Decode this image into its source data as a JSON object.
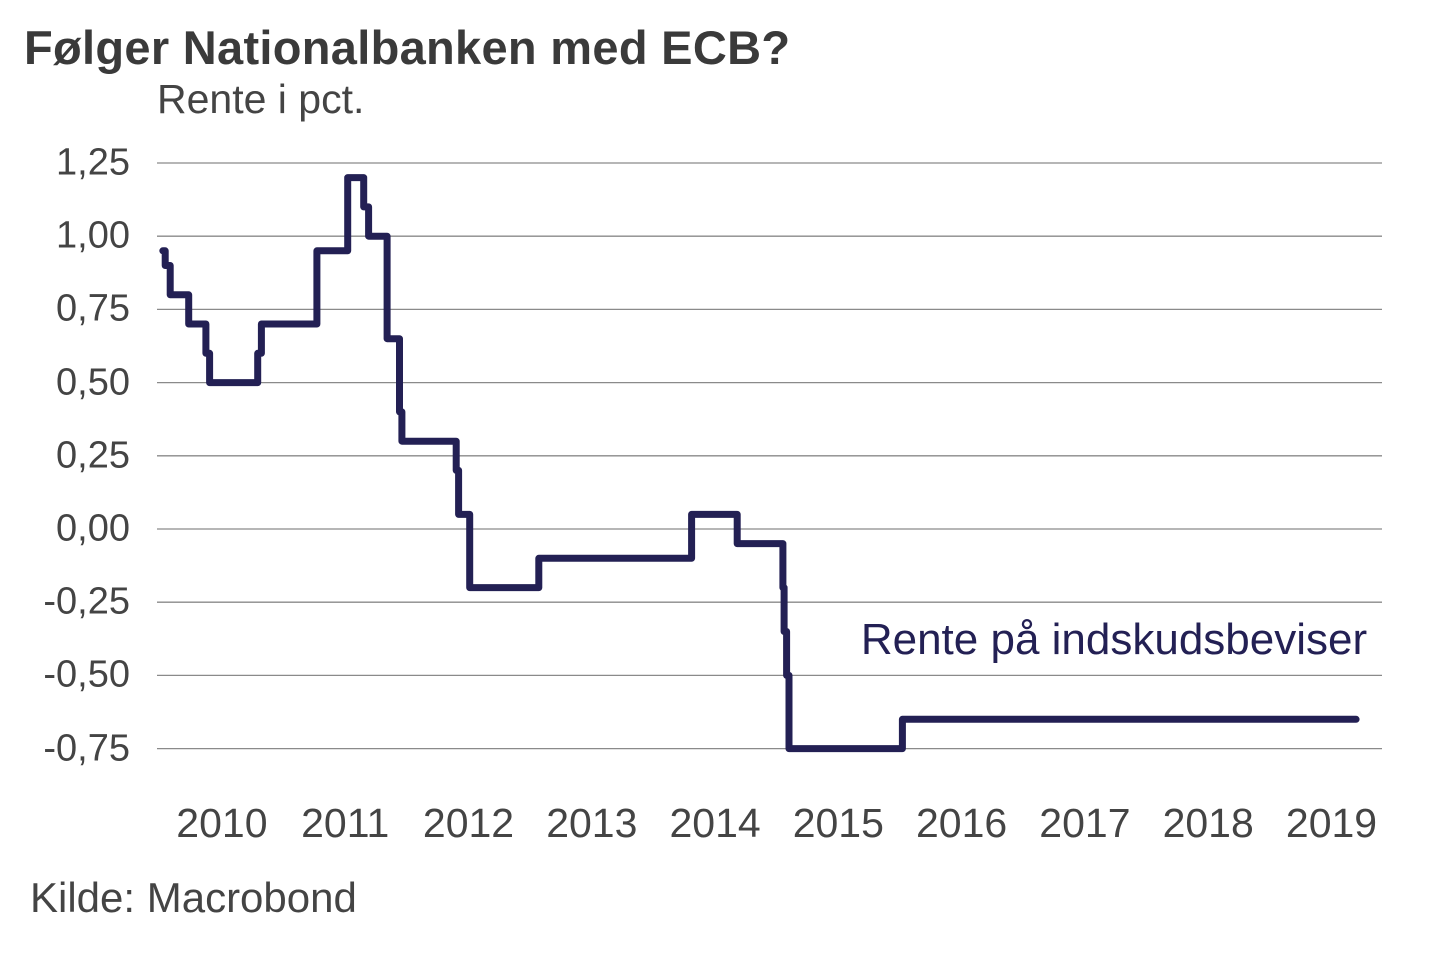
{
  "colors": {
    "background": "#ffffff",
    "line": "#232054",
    "grid": "#8a8a8a",
    "title_text": "#3a3a3a",
    "axis_text": "#444444"
  },
  "chart_data": {
    "type": "line",
    "step_interpolation": "step-after",
    "title": "Følger Nationalbanken med ECB?",
    "subtitle": "Rente i pct.",
    "source": "Kilde: Macrobond",
    "annotation": {
      "text": "Rente på indskudsbeviser"
    },
    "series": [
      {
        "name": "Rente på indskudsbeviser",
        "color": "#232054",
        "points_decimal_year_pct": [
          [
            2010.02,
            0.95
          ],
          [
            2010.04,
            0.9
          ],
          [
            2010.08,
            0.8
          ],
          [
            2010.23,
            0.7
          ],
          [
            2010.37,
            0.6
          ],
          [
            2010.4,
            0.5
          ],
          [
            2010.79,
            0.6
          ],
          [
            2010.82,
            0.7
          ],
          [
            2011.27,
            0.95
          ],
          [
            2011.52,
            1.2
          ],
          [
            2011.65,
            1.1
          ],
          [
            2011.69,
            1.0
          ],
          [
            2011.84,
            0.65
          ],
          [
            2011.94,
            0.4
          ],
          [
            2011.96,
            0.3
          ],
          [
            2012.4,
            0.2
          ],
          [
            2012.42,
            0.05
          ],
          [
            2012.51,
            -0.2
          ],
          [
            2013.07,
            -0.1
          ],
          [
            2014.31,
            0.05
          ],
          [
            2014.68,
            -0.05
          ],
          [
            2015.05,
            -0.2
          ],
          [
            2015.06,
            -0.35
          ],
          [
            2015.08,
            -0.5
          ],
          [
            2015.1,
            -0.75
          ],
          [
            2016.02,
            -0.65
          ],
          [
            2019.7,
            -0.65
          ]
        ]
      }
    ],
    "xlim": [
      2010.0,
      2019.91
    ],
    "ylim": [
      -0.75,
      1.25
    ],
    "y_ticks": [
      {
        "value": 1.25,
        "label": "1,25"
      },
      {
        "value": 1.0,
        "label": "1,00"
      },
      {
        "value": 0.75,
        "label": "0,75"
      },
      {
        "value": 0.5,
        "label": "0,50"
      },
      {
        "value": 0.25,
        "label": "0,25"
      },
      {
        "value": 0.0,
        "label": "0,00"
      },
      {
        "value": -0.25,
        "label": "-0,25"
      },
      {
        "value": -0.5,
        "label": "-0,50"
      },
      {
        "value": -0.75,
        "label": "-0,75"
      }
    ],
    "x_ticks": [
      {
        "value": 2010,
        "label": "2010"
      },
      {
        "value": 2011,
        "label": "2011"
      },
      {
        "value": 2012,
        "label": "2012"
      },
      {
        "value": 2013,
        "label": "2013"
      },
      {
        "value": 2014,
        "label": "2014"
      },
      {
        "value": 2015,
        "label": "2015"
      },
      {
        "value": 2016,
        "label": "2016"
      },
      {
        "value": 2017,
        "label": "2017"
      },
      {
        "value": 2018,
        "label": "2018"
      },
      {
        "value": 2019,
        "label": "2019"
      }
    ],
    "grid": "horizontal",
    "legend_position": "none (inline text annotation near line)"
  }
}
